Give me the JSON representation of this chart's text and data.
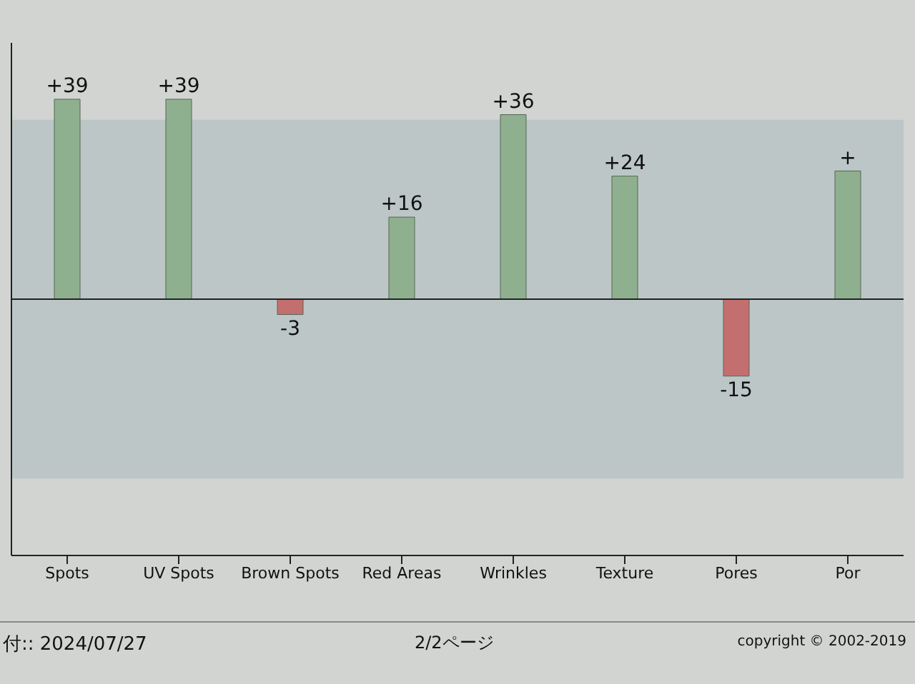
{
  "chart_data": {
    "type": "bar",
    "categories": [
      "Spots",
      "UV Spots",
      "Brown Spots",
      "Red Areas",
      "Wrinkles",
      "Texture",
      "Pores",
      "Por"
    ],
    "values": [
      39,
      39,
      -3,
      16,
      36,
      24,
      -15,
      25
    ],
    "value_labels": [
      "+39",
      "+39",
      "-3",
      "+16",
      "+36",
      "+24",
      "-15",
      "+"
    ],
    "colors": [
      "#8fb08f",
      "#8fb08f",
      "#c46f6f",
      "#8fb08f",
      "#8fb08f",
      "#8fb08f",
      "#c46f6f",
      "#8fb08f"
    ],
    "ylim": [
      -50,
      50
    ],
    "tick_labels": "x",
    "bands": [
      {
        "axis": "y",
        "from": -35,
        "to": 35,
        "color": "#bcc6c6"
      }
    ],
    "annotations": [
      "付:: 2024/07/27",
      "2/2ページ",
      "copyright © 2002-2019"
    ]
  }
}
